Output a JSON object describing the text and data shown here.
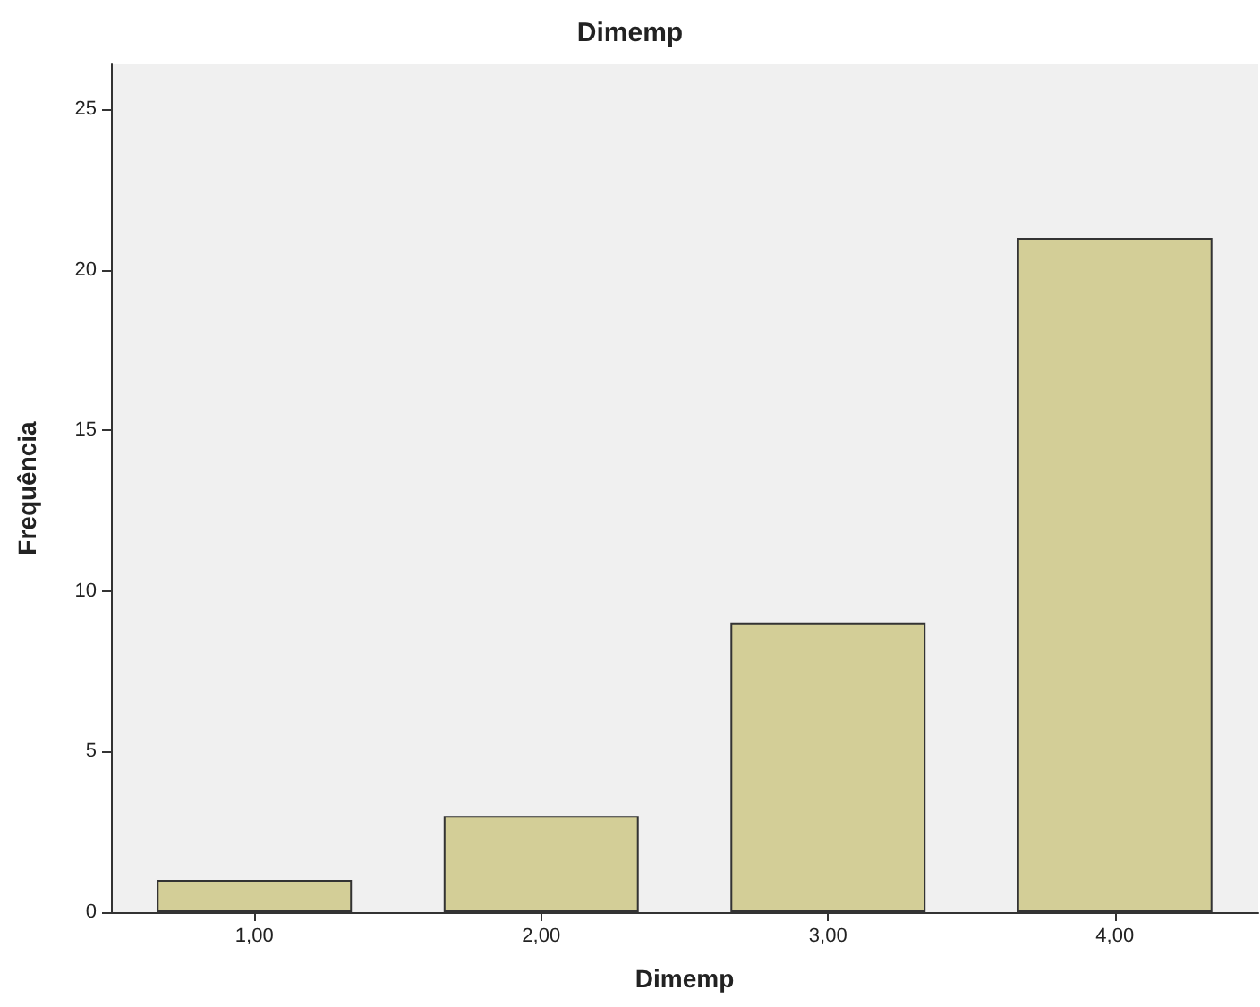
{
  "chart_data": {
    "type": "bar",
    "title": "Dimemp",
    "xlabel": "Dimemp",
    "ylabel": "Frequência",
    "categories": [
      "1,00",
      "2,00",
      "3,00",
      "4,00"
    ],
    "values": [
      1,
      3,
      9,
      21
    ],
    "color": "#d3ce97",
    "ylim": [
      0,
      26.4
    ],
    "yticks": [
      0,
      5,
      10,
      15,
      20,
      25
    ],
    "grid": false
  }
}
